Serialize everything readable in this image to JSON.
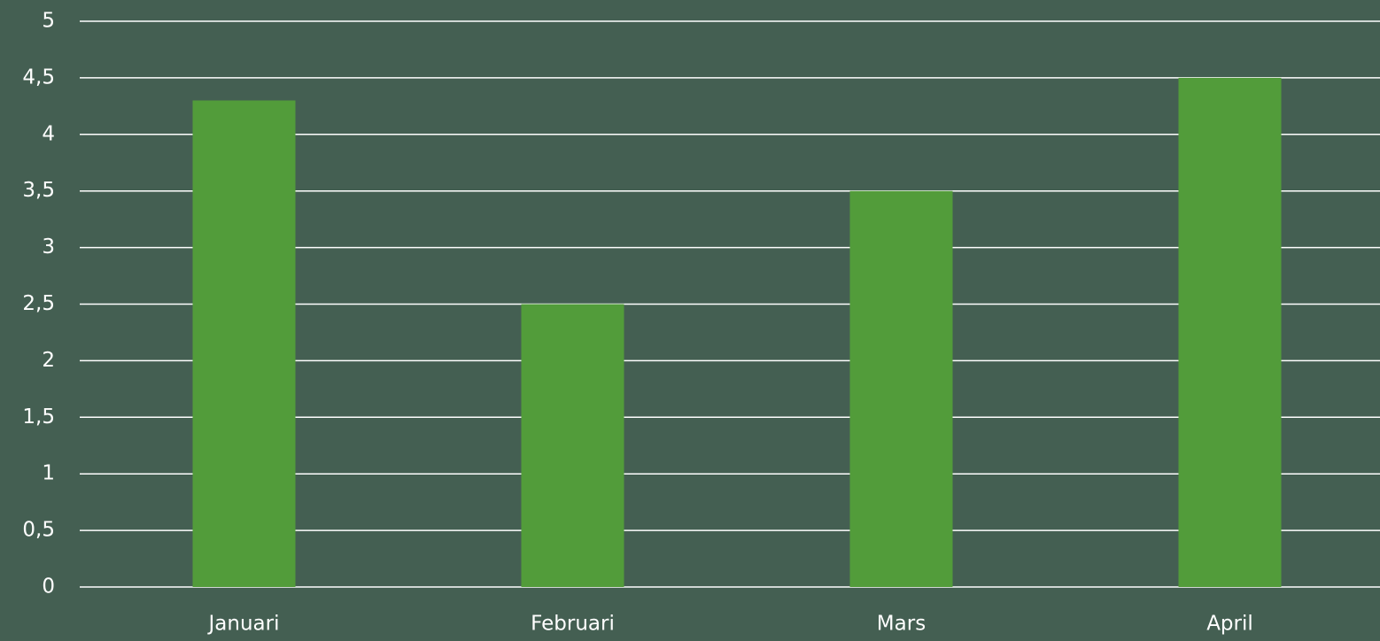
{
  "chart_data": {
    "type": "bar",
    "categories": [
      "Januari",
      "Februari",
      "Mars",
      "April"
    ],
    "values": [
      4.3,
      2.5,
      3.5,
      4.5
    ],
    "color": "#529c3a",
    "ylim": [
      0,
      5
    ],
    "yticks": [
      0,
      {
        "value": 0.5,
        "label": "0,5"
      },
      1,
      {
        "value": 1.5,
        "label": "1,5"
      },
      2,
      {
        "value": 2.5,
        "label": "2,5"
      },
      3,
      {
        "value": 3.5,
        "label": "3,5"
      },
      4,
      {
        "value": 4.5,
        "label": "4,5"
      },
      5
    ],
    "grid": true
  }
}
